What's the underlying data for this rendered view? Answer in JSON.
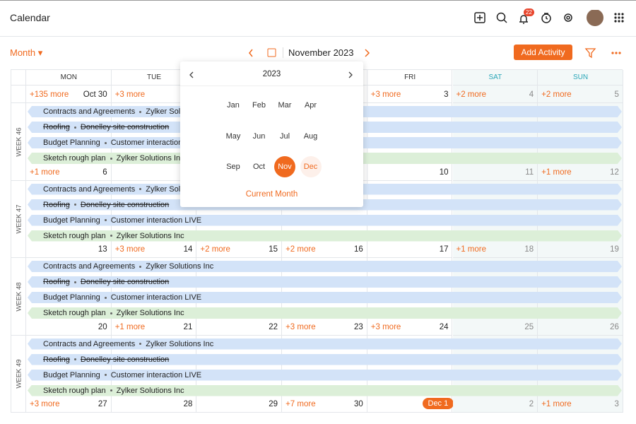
{
  "header": {
    "title": "Calendar",
    "notification_count": "22"
  },
  "toolbar": {
    "view": "Month",
    "month_label": "November 2023",
    "add_button": "Add Activity"
  },
  "calendar": {
    "weekdays": [
      "MON",
      "TUE",
      null,
      null,
      "FRI",
      "SAT",
      "SUN"
    ],
    "rows": [
      {
        "week": null,
        "days": [
          {
            "date": "Oct 30",
            "more": "+135 more"
          },
          {
            "date": null,
            "more": "+3 more"
          },
          {
            "date": null,
            "more": null
          },
          {
            "date": null,
            "more": null
          },
          {
            "date": "3",
            "more": "+3 more"
          },
          {
            "date": "4",
            "more": "+2 more"
          },
          {
            "date": "5",
            "more": "+2 more"
          }
        ]
      },
      {
        "week": "WEEK 46",
        "events": [
          {
            "title": "Contracts and Agreements",
            "sub": "Zylker Solutions Inc",
            "color": "#d3e3f8",
            "done": false
          },
          {
            "title": "Roofing",
            "sub": "Donelley site construction",
            "color": "#d3e3f8",
            "done": true
          },
          {
            "title": "Budget Planning",
            "sub": "Customer interaction LIVE",
            "color": "#d3e3f8",
            "done": false
          },
          {
            "title": "Sketch rough plan",
            "sub": "Zylker Solutions Inc",
            "color": "#dcefd8",
            "done": false
          }
        ],
        "days": [
          {
            "date": "6",
            "more": "+1 more"
          },
          {
            "date": null,
            "more": null
          },
          {
            "date": null,
            "more": null
          },
          {
            "date": null,
            "more": null
          },
          {
            "date": "10",
            "more": null
          },
          {
            "date": "11",
            "more": null
          },
          {
            "date": "12",
            "more": "+1 more"
          }
        ]
      },
      {
        "week": "WEEK 47",
        "events": [
          {
            "title": "Contracts and Agreements",
            "sub": "Zylker Solutions Inc",
            "color": "#d3e3f8",
            "done": false
          },
          {
            "title": "Roofing",
            "sub": "Donelley site construction",
            "color": "#d3e3f8",
            "done": true
          },
          {
            "title": "Budget Planning",
            "sub": "Customer interaction LIVE",
            "color": "#d3e3f8",
            "done": false
          },
          {
            "title": "Sketch rough plan",
            "sub": "Zylker Solutions Inc",
            "color": "#dcefd8",
            "done": false
          }
        ],
        "days": [
          {
            "date": "13",
            "more": null
          },
          {
            "date": "14",
            "more": "+3 more"
          },
          {
            "date": "15",
            "more": "+2 more"
          },
          {
            "date": "16",
            "more": "+2 more"
          },
          {
            "date": "17",
            "more": null
          },
          {
            "date": "18",
            "more": "+1 more"
          },
          {
            "date": "19",
            "more": null
          }
        ]
      },
      {
        "week": "WEEK 48",
        "events": [
          {
            "title": "Contracts and Agreements",
            "sub": "Zylker Solutions Inc",
            "color": "#d3e3f8",
            "done": false
          },
          {
            "title": "Roofing",
            "sub": "Donelley site construction",
            "color": "#d3e3f8",
            "done": true
          },
          {
            "title": "Budget Planning",
            "sub": "Customer interaction LIVE",
            "color": "#d3e3f8",
            "done": false
          },
          {
            "title": "Sketch rough plan",
            "sub": "Zylker Solutions Inc",
            "color": "#dcefd8",
            "done": false
          }
        ],
        "days": [
          {
            "date": "20",
            "more": null
          },
          {
            "date": "21",
            "more": "+1 more"
          },
          {
            "date": "22",
            "more": null
          },
          {
            "date": "23",
            "more": "+3 more"
          },
          {
            "date": "24",
            "more": "+3 more"
          },
          {
            "date": "25",
            "more": null
          },
          {
            "date": "26",
            "more": null
          }
        ]
      },
      {
        "week": "WEEK 49",
        "events": [
          {
            "title": "Contracts and Agreements",
            "sub": "Zylker Solutions Inc",
            "color": "#d3e3f8",
            "done": false
          },
          {
            "title": "Roofing",
            "sub": "Donelley site construction",
            "color": "#d3e3f8",
            "done": true
          },
          {
            "title": "Budget Planning",
            "sub": "Customer interaction LIVE",
            "color": "#d3e3f8",
            "done": false
          },
          {
            "title": "Sketch rough plan",
            "sub": "Zylker Solutions Inc",
            "color": "#dcefd8",
            "done": false
          }
        ],
        "days": [
          {
            "date": "27",
            "more": "+3 more"
          },
          {
            "date": "28",
            "more": null
          },
          {
            "date": "29",
            "more": null
          },
          {
            "date": "30",
            "more": "+7 more"
          },
          {
            "date": "Dec 1",
            "more": null,
            "badge": true
          },
          {
            "date": "2",
            "more": null
          },
          {
            "date": "3",
            "more": "+1 more"
          }
        ]
      }
    ]
  },
  "picker": {
    "year": "2023",
    "months": [
      "Jan",
      "Feb",
      "Mar",
      "Apr",
      "May",
      "Jun",
      "Jul",
      "Aug",
      "Sep",
      "Oct",
      "Nov",
      "Dec"
    ],
    "selected": 10,
    "hovered": 11,
    "current_link": "Current Month"
  }
}
